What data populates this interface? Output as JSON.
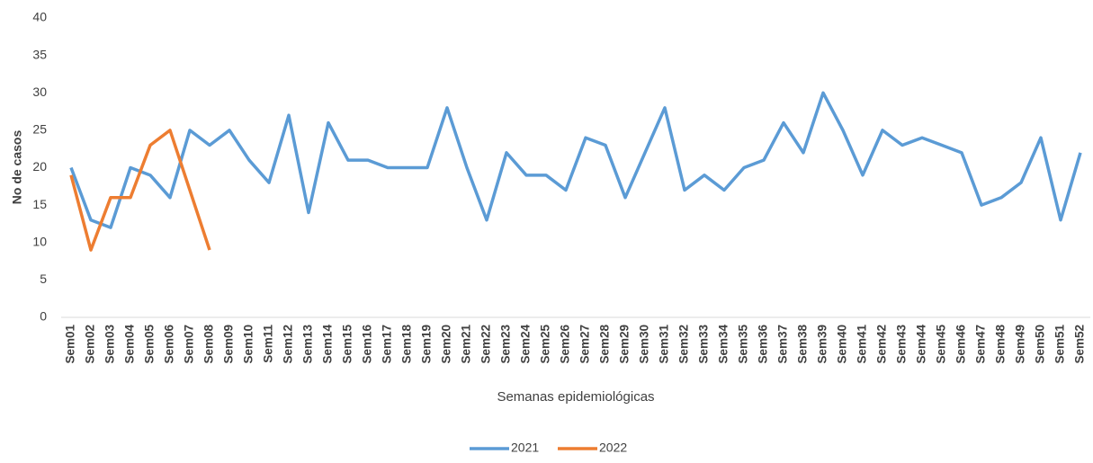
{
  "chart_data": {
    "type": "line",
    "y_label": "No de  casos",
    "x_label": "Semanas epidemiológicas",
    "categories": [
      "Sem01",
      "Sem02",
      "Sem03",
      "Sem04",
      "Sem05",
      "Sem06",
      "Sem07",
      "Sem08",
      "Sem09",
      "Sem10",
      "Sem11",
      "Sem12",
      "Sem13",
      "Sem14",
      "Sem15",
      "Sem16",
      "Sem17",
      "Sem18",
      "Sem19",
      "Sem20",
      "Sem21",
      "Sem22",
      "Sem23",
      "Sem24",
      "Sem25",
      "Sem26",
      "Sem27",
      "Sem28",
      "Sem29",
      "Sem30",
      "Sem31",
      "Sem32",
      "Sem33",
      "Sem34",
      "Sem35",
      "Sem36",
      "Sem37",
      "Sem38",
      "Sem39",
      "Sem40",
      "Sem41",
      "Sem42",
      "Sem43",
      "Sem44",
      "Sem45",
      "Sem46",
      "Sem47",
      "Sem48",
      "Sem49",
      "Sem50",
      "Sem51",
      "Sem52"
    ],
    "series": [
      {
        "name": "2021",
        "color": "#5b9bd5",
        "values": [
          20,
          13,
          12,
          20,
          19,
          16,
          25,
          23,
          25,
          21,
          18,
          27,
          14,
          26,
          21,
          21,
          20,
          20,
          20,
          28,
          20,
          13,
          22,
          19,
          19,
          17,
          24,
          23,
          16,
          22,
          28,
          17,
          19,
          17,
          20,
          21,
          26,
          22,
          30,
          25,
          19,
          25,
          23,
          24,
          23,
          22,
          15,
          16,
          18,
          24,
          13,
          22
        ]
      },
      {
        "name": "2022",
        "color": "#ed7d31",
        "values": [
          19,
          9,
          16,
          16,
          23,
          25,
          17,
          9,
          null,
          null,
          null,
          null,
          null,
          null,
          null,
          null,
          null,
          null,
          null,
          null,
          null,
          null,
          null,
          null,
          null,
          null,
          null,
          null,
          null,
          null,
          null,
          null,
          null,
          null,
          null,
          null,
          null,
          null,
          null,
          null,
          null,
          null,
          null,
          null,
          null,
          null,
          null,
          null,
          null,
          null,
          null,
          null
        ]
      }
    ],
    "ylim": [
      0,
      40
    ],
    "yticks": [
      0,
      5,
      10,
      15,
      20,
      25,
      30,
      35,
      40
    ],
    "grid": false,
    "legend": "bottom"
  }
}
